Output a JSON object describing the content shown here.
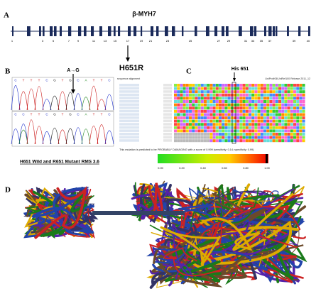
{
  "panel_a": {
    "label": "A",
    "gene": "β-MYH7",
    "exons": [
      "1",
      "3",
      "5",
      "7",
      "9",
      "11",
      "13",
      "15",
      "17",
      "19",
      "21",
      "23",
      "25",
      "27",
      "29",
      "31",
      "33",
      "35",
      "37",
      "39",
      "40"
    ]
  },
  "panel_b": {
    "label": "B",
    "mutation": "A→G",
    "seq_top": [
      "C",
      "T",
      "T",
      "T",
      "C",
      "G",
      "T",
      "G",
      "C",
      "A",
      "T",
      "T",
      "C"
    ],
    "seq_bottom": [
      "C",
      "C",
      "T",
      "T",
      "C",
      "G",
      "T",
      "G",
      "C",
      "A",
      "T",
      "T",
      "C"
    ]
  },
  "variant": "H651R",
  "panel_c": {
    "label": "C",
    "residue": "His 651",
    "header_left": "sequence alignment",
    "header_right": "UniProtKB/UniRef100 Release 2011_12",
    "prediction": "This mutation is predicted to be PROBABLY DAMAGING with a score of 0.999 (sensitivity: 0.14; specificity: 0.99)",
    "scale_ticks": [
      "0.00",
      "0.20",
      "0.40",
      "0.60",
      "0.80",
      "1.00"
    ]
  },
  "panel_d": {
    "label": "D",
    "caption": "H651 Wild and R651 Mutant RMS 3.6"
  }
}
